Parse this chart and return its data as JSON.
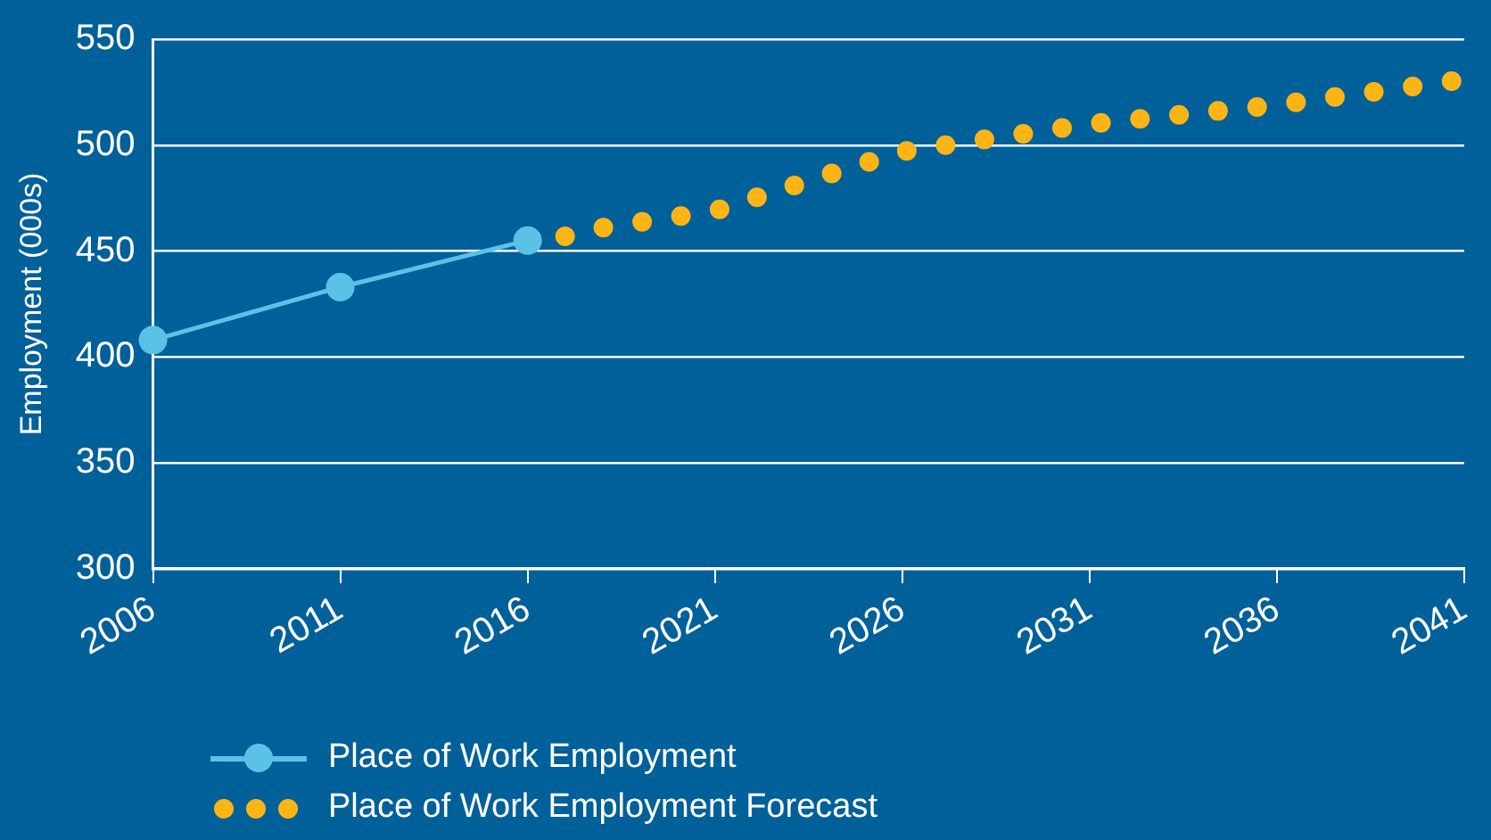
{
  "chart_data": {
    "type": "line",
    "ylabel": "Employment (000s)",
    "xlim": [
      2006,
      2041
    ],
    "xticks": [
      2006,
      2011,
      2016,
      2021,
      2026,
      2031,
      2036,
      2041
    ],
    "ylim": [
      300,
      550
    ],
    "yticks": [
      300,
      350,
      400,
      450,
      500,
      550
    ],
    "grid": "y",
    "legend": "bottom",
    "series": [
      {
        "name": "Place of Work Employment",
        "color": "#5bc2e7",
        "marker": "circle",
        "line_style": "solid",
        "x": [
          2006,
          2011,
          2016
        ],
        "values": [
          408,
          433,
          455
        ]
      },
      {
        "name": "Place of Work Employment Forecast",
        "color": "#fdb515",
        "marker": "none",
        "line_style": "dotted",
        "x": [
          2017,
          2018,
          2021,
          2024,
          2026,
          2031,
          2036,
          2041
        ],
        "values": [
          457,
          461,
          469,
          486,
          497,
          510,
          519,
          531
        ]
      }
    ]
  }
}
